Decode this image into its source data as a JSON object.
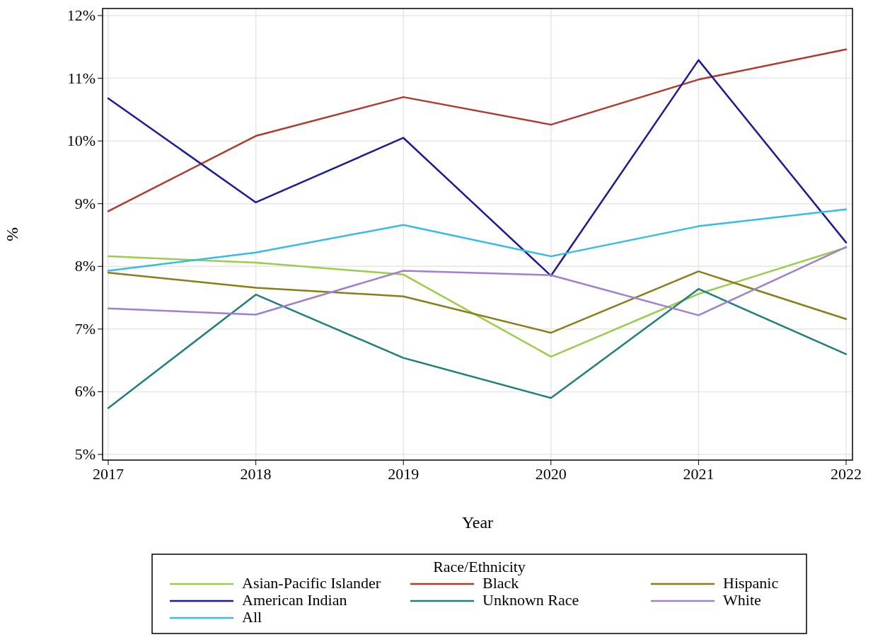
{
  "chart_data": {
    "type": "line",
    "xlabel": "Year",
    "ylabel": "%",
    "legend_title": "Race/Ethnicity",
    "x": [
      2017,
      2018,
      2019,
      2020,
      2021,
      2022
    ],
    "xlim": [
      2017,
      2022
    ],
    "xticks": [
      2017,
      2018,
      2019,
      2020,
      2021,
      2022
    ],
    "ylim": [
      5,
      12
    ],
    "yticks": [
      {
        "value": 5,
        "label": "5%"
      },
      {
        "value": 6,
        "label": "6%"
      },
      {
        "value": 7,
        "label": "7%"
      },
      {
        "value": 8,
        "label": "8%"
      },
      {
        "value": 9,
        "label": "9%"
      },
      {
        "value": 10,
        "label": "10%"
      },
      {
        "value": 11,
        "label": "11%"
      },
      {
        "value": 12,
        "label": "12%"
      }
    ],
    "grid": true,
    "legend": "bottom",
    "line_style": "solid",
    "series": [
      {
        "name": "Asian-Pacific Islander",
        "color": "#9acd4a",
        "values": [
          8.16,
          8.06,
          7.87,
          6.56,
          7.56,
          8.3
        ]
      },
      {
        "name": "Black",
        "color": "#b03a2e",
        "values": [
          8.88,
          10.08,
          10.7,
          10.26,
          10.98,
          11.46
        ]
      },
      {
        "name": "Hispanic",
        "color": "#8b7d16",
        "values": [
          7.9,
          7.66,
          7.52,
          6.94,
          7.92,
          7.16
        ]
      },
      {
        "name": "American Indian",
        "color": "#1a1a9c",
        "values": [
          10.68,
          9.02,
          10.05,
          7.85,
          11.29,
          8.38
        ]
      },
      {
        "name": "Unknown Race",
        "color": "#1f7f7f",
        "values": [
          5.74,
          7.55,
          6.54,
          5.9,
          7.64,
          6.6
        ]
      },
      {
        "name": "White",
        "color": "#a07fd0",
        "values": [
          7.33,
          7.23,
          7.93,
          7.86,
          7.22,
          8.31
        ]
      },
      {
        "name": "All",
        "color": "#33bde6",
        "values": [
          7.93,
          8.22,
          8.66,
          8.16,
          8.64,
          8.91
        ]
      }
    ]
  }
}
